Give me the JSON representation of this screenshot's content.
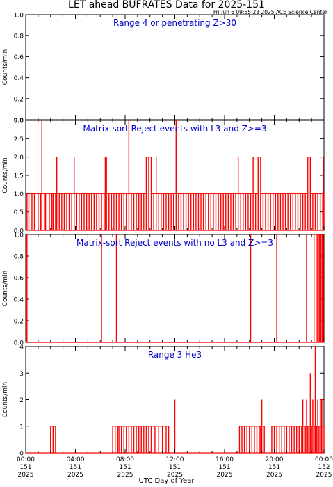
{
  "title": "LET ahead BUFRATES Data for 2025-151",
  "timestamp": "Fri Jun  6 09:55:23 2025 ACE Science Center",
  "xlabel": "UTC Day of Year",
  "colors": {
    "data": "#ff0000",
    "panel_title": "#0000cc",
    "axis": "#000000"
  },
  "chart_data": [
    {
      "type": "bar",
      "title": "Range 4 or  penetrating Z>30",
      "ylabel": "Counts/min",
      "ylim": [
        0,
        1.0
      ],
      "yticks": [
        "0.0",
        "0.2",
        "0.4",
        "0.6",
        "0.8",
        "1.0"
      ],
      "spikes": []
    },
    {
      "type": "bar",
      "title": "Matrix-sort Reject events with L3 and Z>=3",
      "ylabel": "Counts/min",
      "ylim": [
        0,
        3.0
      ],
      "yticks": [
        "0.0",
        "0.5",
        "1.0",
        "1.5",
        "2.0",
        "2.5",
        "3.0"
      ],
      "spikes": [
        [
          0.1,
          1
        ],
        [
          0.25,
          1
        ],
        [
          0.5,
          1
        ],
        [
          0.7,
          1
        ],
        [
          1.0,
          1
        ],
        [
          1.2,
          1
        ],
        [
          1.3,
          3
        ],
        [
          1.5,
          1
        ],
        [
          1.6,
          1
        ],
        [
          1.9,
          1
        ],
        [
          2.1,
          1
        ],
        [
          2.2,
          1
        ],
        [
          2.4,
          1
        ],
        [
          2.5,
          2
        ],
        [
          2.7,
          1
        ],
        [
          2.9,
          1
        ],
        [
          3.1,
          1
        ],
        [
          3.3,
          1
        ],
        [
          3.5,
          1
        ],
        [
          3.7,
          1
        ],
        [
          3.9,
          2
        ],
        [
          4.1,
          1
        ],
        [
          4.3,
          1
        ],
        [
          4.5,
          1
        ],
        [
          4.7,
          1
        ],
        [
          4.9,
          1
        ],
        [
          5.1,
          1
        ],
        [
          5.3,
          1
        ],
        [
          5.5,
          1
        ],
        [
          5.7,
          1
        ],
        [
          5.9,
          1
        ],
        [
          6.1,
          1
        ],
        [
          6.3,
          1
        ],
        [
          6.4,
          2
        ],
        [
          6.5,
          2
        ],
        [
          6.7,
          1
        ],
        [
          6.9,
          1
        ],
        [
          7.1,
          1
        ],
        [
          7.3,
          1
        ],
        [
          7.5,
          1
        ],
        [
          7.7,
          1
        ],
        [
          7.9,
          1
        ],
        [
          8.1,
          1
        ],
        [
          8.3,
          3
        ],
        [
          8.5,
          1
        ],
        [
          8.7,
          1
        ],
        [
          8.9,
          1
        ],
        [
          9.1,
          1
        ],
        [
          9.3,
          1
        ],
        [
          9.5,
          1
        ],
        [
          9.7,
          2
        ],
        [
          9.9,
          2
        ],
        [
          10.1,
          2
        ],
        [
          10.3,
          1
        ],
        [
          10.5,
          2
        ],
        [
          10.7,
          1
        ],
        [
          10.9,
          1
        ],
        [
          11.1,
          1
        ],
        [
          11.3,
          1
        ],
        [
          11.5,
          1
        ],
        [
          11.7,
          1
        ],
        [
          11.9,
          1
        ],
        [
          12.1,
          3
        ],
        [
          12.3,
          1
        ],
        [
          12.5,
          1
        ],
        [
          12.7,
          1
        ],
        [
          12.9,
          1
        ],
        [
          13.1,
          1
        ],
        [
          13.3,
          1
        ],
        [
          13.5,
          1
        ],
        [
          13.7,
          1
        ],
        [
          13.9,
          1
        ],
        [
          14.1,
          1
        ],
        [
          14.3,
          1
        ],
        [
          14.5,
          1
        ],
        [
          14.7,
          1
        ],
        [
          14.9,
          1
        ],
        [
          15.1,
          1
        ],
        [
          15.3,
          1
        ],
        [
          15.5,
          1
        ],
        [
          15.7,
          1
        ],
        [
          15.9,
          1
        ],
        [
          16.1,
          1
        ],
        [
          16.3,
          1
        ],
        [
          16.5,
          1
        ],
        [
          16.7,
          1
        ],
        [
          16.9,
          1
        ],
        [
          17.1,
          2
        ],
        [
          17.3,
          1
        ],
        [
          17.5,
          1
        ],
        [
          17.7,
          1
        ],
        [
          17.9,
          1
        ],
        [
          18.1,
          1
        ],
        [
          18.3,
          2
        ],
        [
          18.5,
          1
        ],
        [
          18.7,
          2
        ],
        [
          18.9,
          2
        ],
        [
          19.1,
          1
        ],
        [
          19.3,
          1
        ],
        [
          19.5,
          1
        ],
        [
          19.7,
          1
        ],
        [
          19.9,
          1
        ],
        [
          20.1,
          1
        ],
        [
          20.3,
          1
        ],
        [
          20.5,
          1
        ],
        [
          20.7,
          1
        ],
        [
          20.9,
          1
        ],
        [
          21.1,
          1
        ],
        [
          21.3,
          1
        ],
        [
          21.5,
          1
        ],
        [
          21.7,
          1
        ],
        [
          21.9,
          1
        ],
        [
          22.1,
          1
        ],
        [
          22.3,
          1
        ],
        [
          22.5,
          1
        ],
        [
          22.7,
          2
        ],
        [
          22.9,
          2
        ],
        [
          23.1,
          1
        ],
        [
          23.3,
          1
        ],
        [
          23.5,
          1
        ],
        [
          23.7,
          1
        ],
        [
          23.9,
          1
        ],
        [
          23.95,
          2
        ],
        [
          24.0,
          1
        ]
      ]
    },
    {
      "type": "bar",
      "title": "Matrix-sort Reject events with no L3 and Z>=3",
      "ylabel": "Counts/min",
      "ylim": [
        0,
        1.0
      ],
      "yticks": [
        "0.0",
        "0.2",
        "0.4",
        "0.6",
        "0.8",
        "1.0"
      ],
      "spikes": [
        [
          0.05,
          1
        ],
        [
          0.1,
          1
        ],
        [
          6.1,
          1
        ],
        [
          7.3,
          1
        ],
        [
          18.1,
          1
        ],
        [
          20.2,
          1
        ],
        [
          22.6,
          1
        ],
        [
          23.2,
          1
        ],
        [
          23.45,
          1
        ],
        [
          23.55,
          1
        ],
        [
          23.65,
          1
        ],
        [
          23.75,
          1
        ],
        [
          23.85,
          1
        ],
        [
          23.95,
          1
        ]
      ]
    },
    {
      "type": "bar",
      "title": "Range 3 He3",
      "ylabel": "Counts/min",
      "ylim": [
        0,
        4
      ],
      "yticks": [
        "0",
        "1",
        "2",
        "3",
        "4"
      ],
      "spikes": [
        [
          2.0,
          1
        ],
        [
          2.2,
          1
        ],
        [
          2.4,
          1
        ],
        [
          7.0,
          1
        ],
        [
          7.2,
          1
        ],
        [
          7.4,
          1
        ],
        [
          7.5,
          1
        ],
        [
          7.7,
          1
        ],
        [
          7.9,
          1
        ],
        [
          8.1,
          1
        ],
        [
          8.3,
          1
        ],
        [
          8.5,
          1
        ],
        [
          8.7,
          1
        ],
        [
          8.9,
          1
        ],
        [
          9.1,
          1
        ],
        [
          9.3,
          1
        ],
        [
          9.5,
          1
        ],
        [
          9.7,
          1
        ],
        [
          9.9,
          1
        ],
        [
          10.1,
          1
        ],
        [
          10.4,
          1
        ],
        [
          10.7,
          1
        ],
        [
          11.0,
          1
        ],
        [
          11.3,
          1
        ],
        [
          11.5,
          1
        ],
        [
          12.0,
          2
        ],
        [
          17.2,
          1
        ],
        [
          17.4,
          1
        ],
        [
          17.6,
          1
        ],
        [
          17.8,
          1
        ],
        [
          18.0,
          1
        ],
        [
          18.2,
          1
        ],
        [
          18.4,
          1
        ],
        [
          18.6,
          1
        ],
        [
          18.8,
          1
        ],
        [
          18.9,
          1
        ],
        [
          19.0,
          2
        ],
        [
          19.2,
          1
        ],
        [
          19.8,
          1
        ],
        [
          20.0,
          1
        ],
        [
          20.2,
          1
        ],
        [
          20.4,
          1
        ],
        [
          20.6,
          1
        ],
        [
          20.8,
          1
        ],
        [
          21.0,
          1
        ],
        [
          21.2,
          1
        ],
        [
          21.4,
          1
        ],
        [
          21.6,
          1
        ],
        [
          21.8,
          1
        ],
        [
          22.0,
          1
        ],
        [
          22.2,
          1
        ],
        [
          22.3,
          2
        ],
        [
          22.5,
          1
        ],
        [
          22.6,
          2
        ],
        [
          22.7,
          1
        ],
        [
          22.8,
          1
        ],
        [
          22.9,
          3
        ],
        [
          23.0,
          1
        ],
        [
          23.1,
          2
        ],
        [
          23.2,
          1
        ],
        [
          23.3,
          4
        ],
        [
          23.4,
          1
        ],
        [
          23.5,
          2
        ],
        [
          23.6,
          1
        ],
        [
          23.7,
          2
        ],
        [
          23.8,
          2
        ],
        [
          23.9,
          2
        ],
        [
          24.0,
          1
        ]
      ],
      "xticks": [
        [
          "00:00",
          "151",
          "2025"
        ],
        [
          "04:00",
          "151",
          "2025"
        ],
        [
          "08:00",
          "151",
          "2025"
        ],
        [
          "12:00",
          "151",
          "2025"
        ],
        [
          "16:00",
          "151",
          "2025"
        ],
        [
          "20:00",
          "151",
          "2025"
        ],
        [
          "00:00",
          "152",
          "2025"
        ]
      ],
      "xlim": [
        0,
        24
      ]
    }
  ]
}
